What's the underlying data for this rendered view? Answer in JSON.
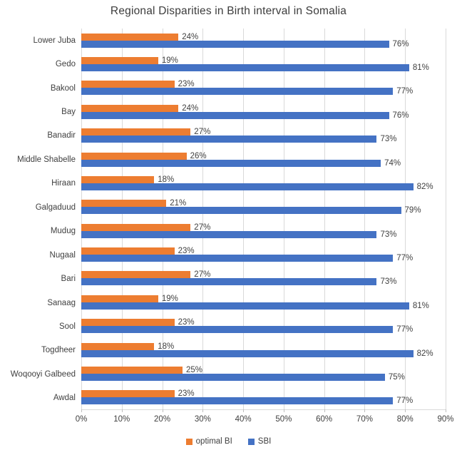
{
  "chart_data": {
    "type": "bar",
    "orientation": "horizontal",
    "title": "Regional Disparities in Birth interval in Somalia",
    "categories": [
      "Lower Juba",
      "Gedo",
      "Bakool",
      "Bay",
      "Banadir",
      "Middle Shabelle",
      "Hiraan",
      "Galgaduud",
      "Mudug",
      "Nugaal",
      "Bari",
      "Sanaag",
      "Sool",
      "Togdheer",
      "Woqooyi Galbeed",
      "Awdal"
    ],
    "series": [
      {
        "name": "optimal BI",
        "color": "#ED7D31",
        "values": [
          24,
          19,
          23,
          24,
          27,
          26,
          18,
          21,
          27,
          23,
          27,
          19,
          23,
          18,
          25,
          23
        ]
      },
      {
        "name": "SBI",
        "color": "#4472C4",
        "values": [
          76,
          81,
          77,
          76,
          73,
          74,
          82,
          79,
          73,
          77,
          73,
          81,
          77,
          82,
          75,
          77
        ]
      }
    ],
    "xlabel": "",
    "ylabel": "",
    "xlim": [
      0,
      90
    ],
    "xticks": [
      "0%",
      "10%",
      "20%",
      "30%",
      "40%",
      "50%",
      "60%",
      "70%",
      "80%",
      "90%"
    ],
    "value_suffix": "%",
    "grid": true,
    "legend_position": "bottom"
  },
  "style_colors": {
    "bar_optimal_bi": "#ED7D31",
    "bar_sbi": "#4472C4",
    "gridline": "#D9D9D9",
    "text": "#404040",
    "background": "#FFFFFF"
  }
}
